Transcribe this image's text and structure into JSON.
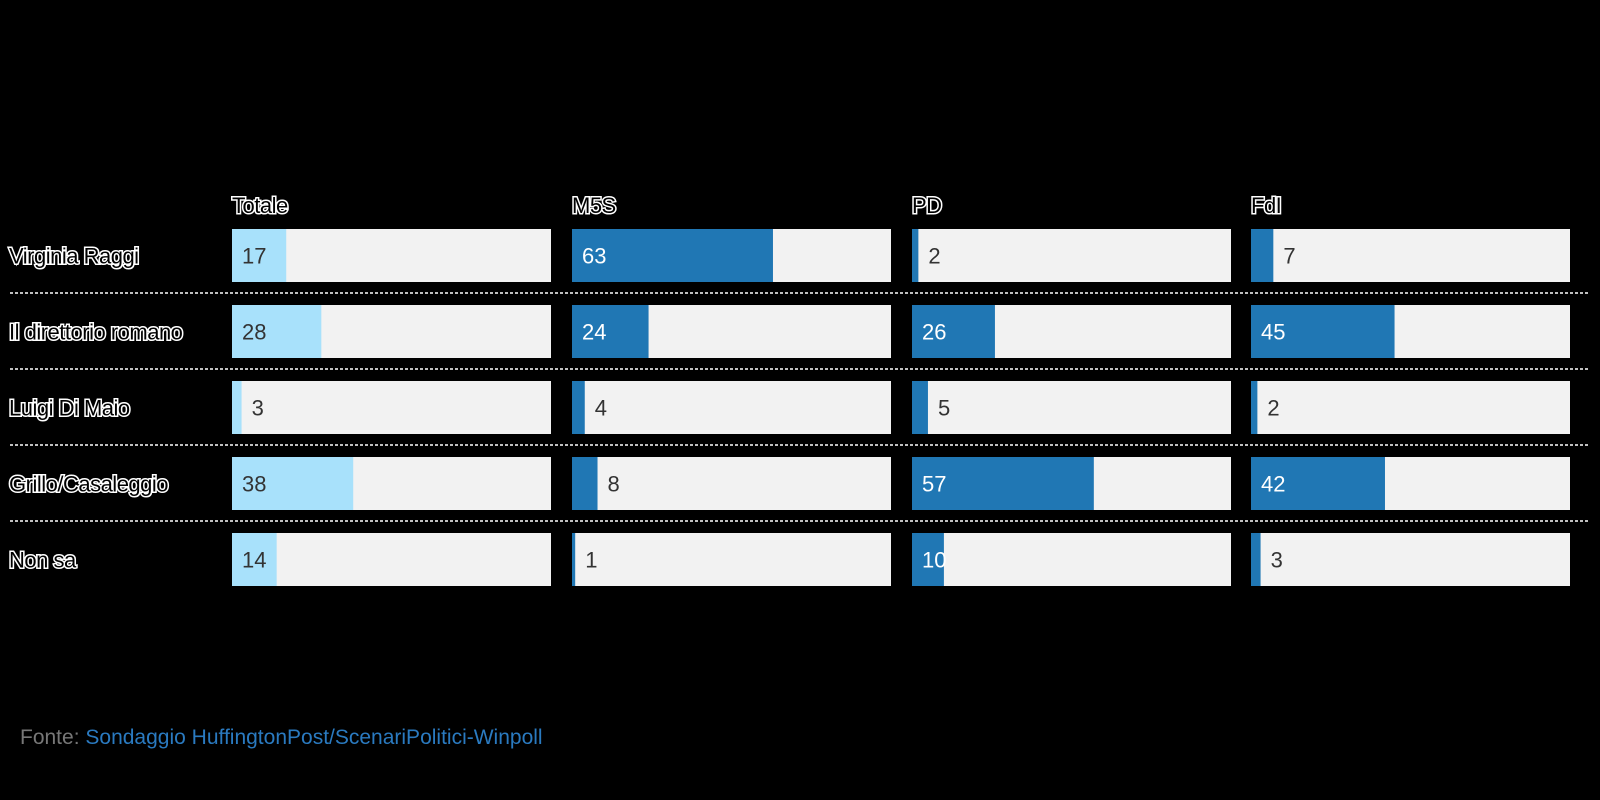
{
  "chart_data": {
    "type": "bar",
    "orientation": "horizontal",
    "panels": [
      "Totale",
      "M5S",
      "PD",
      "FdI"
    ],
    "categories": [
      "Virginia Raggi",
      "Il direttorio romano",
      "Luigi Di Maio",
      "Grillo/Casaleggio",
      "Non sa"
    ],
    "xlim": [
      0,
      100
    ],
    "series": [
      {
        "name": "Totale",
        "values": [
          17,
          28,
          3,
          38,
          14
        ]
      },
      {
        "name": "M5S",
        "values": [
          63,
          24,
          4,
          8,
          1
        ]
      },
      {
        "name": "PD",
        "values": [
          2,
          26,
          5,
          57,
          10
        ]
      },
      {
        "name": "FdI",
        "values": [
          7,
          45,
          2,
          42,
          3
        ]
      }
    ]
  },
  "colors": {
    "background": "#000000",
    "track": "#f2f2f2",
    "highlight_bar": "#a8e1fb",
    "party_bar": "#2077b4",
    "label_dark": "#333333",
    "label_light": "#ffffff",
    "source_link": "#2a7ac0",
    "source_text": "#777777"
  },
  "source": {
    "label": "Fonte:",
    "link_text": "Sondaggio HuffingtonPost/ScenariPolitici-Winpoll"
  }
}
